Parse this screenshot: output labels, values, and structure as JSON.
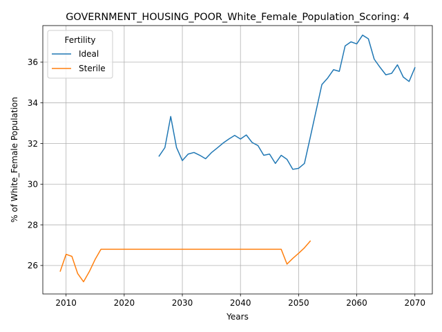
{
  "chart_data": {
    "type": "line",
    "title": "GOVERNMENT_HOUSING_POOR_White_Female_Population_Scoring: 4",
    "xlabel": "Years",
    "ylabel": "% of White_Female Population",
    "xlim": [
      2006,
      2073
    ],
    "ylim": [
      24.6,
      37.8
    ],
    "xticks": [
      2010,
      2020,
      2030,
      2040,
      2050,
      2060,
      2070
    ],
    "yticks": [
      26,
      28,
      30,
      32,
      34,
      36
    ],
    "grid": true,
    "legend": {
      "title": "Fertility",
      "position": "upper-left"
    },
    "series": [
      {
        "name": "Ideal",
        "color": "#1f77b4",
        "x": [
          2026,
          2027,
          2028,
          2029,
          2030,
          2031,
          2032,
          2033,
          2034,
          2035,
          2036,
          2037,
          2038,
          2039,
          2040,
          2041,
          2042,
          2043,
          2044,
          2045,
          2046,
          2047,
          2048,
          2049,
          2050,
          2051,
          2052,
          2053,
          2054,
          2055,
          2056,
          2057,
          2058,
          2059,
          2060,
          2061,
          2062,
          2063,
          2064,
          2065,
          2066,
          2067,
          2068,
          2069,
          2070
        ],
        "y": [
          31.38,
          31.8,
          33.33,
          31.8,
          31.16,
          31.48,
          31.56,
          31.42,
          31.25,
          31.55,
          31.78,
          32.02,
          32.22,
          32.4,
          32.22,
          32.42,
          32.05,
          31.9,
          31.42,
          31.48,
          31.02,
          31.42,
          31.22,
          30.73,
          30.78,
          31.02,
          32.3,
          33.6,
          34.9,
          35.22,
          35.63,
          35.55,
          36.8,
          37.0,
          36.9,
          37.33,
          37.15,
          36.15,
          35.75,
          35.38,
          35.45,
          35.87,
          35.27,
          35.05,
          35.73
        ]
      },
      {
        "name": "Sterile",
        "color": "#ff7f0e",
        "x": [
          2009,
          2010,
          2011,
          2012,
          2013,
          2014,
          2015,
          2016,
          2017,
          2018,
          2019,
          2020,
          2021,
          2022,
          2023,
          2024,
          2025,
          2026,
          2027,
          2028,
          2029,
          2030,
          2031,
          2032,
          2033,
          2034,
          2035,
          2036,
          2037,
          2038,
          2039,
          2040,
          2041,
          2042,
          2043,
          2044,
          2045,
          2046,
          2047,
          2048,
          2049,
          2050,
          2051,
          2052
        ],
        "y": [
          25.72,
          26.55,
          26.45,
          25.6,
          25.2,
          25.7,
          26.3,
          26.8,
          26.8,
          26.8,
          26.8,
          26.8,
          26.8,
          26.8,
          26.8,
          26.8,
          26.8,
          26.8,
          26.8,
          26.8,
          26.8,
          26.8,
          26.8,
          26.8,
          26.8,
          26.8,
          26.8,
          26.8,
          26.8,
          26.8,
          26.8,
          26.8,
          26.8,
          26.8,
          26.8,
          26.8,
          26.8,
          26.8,
          26.8,
          26.07,
          26.35,
          26.6,
          26.87,
          27.2
        ]
      }
    ]
  }
}
